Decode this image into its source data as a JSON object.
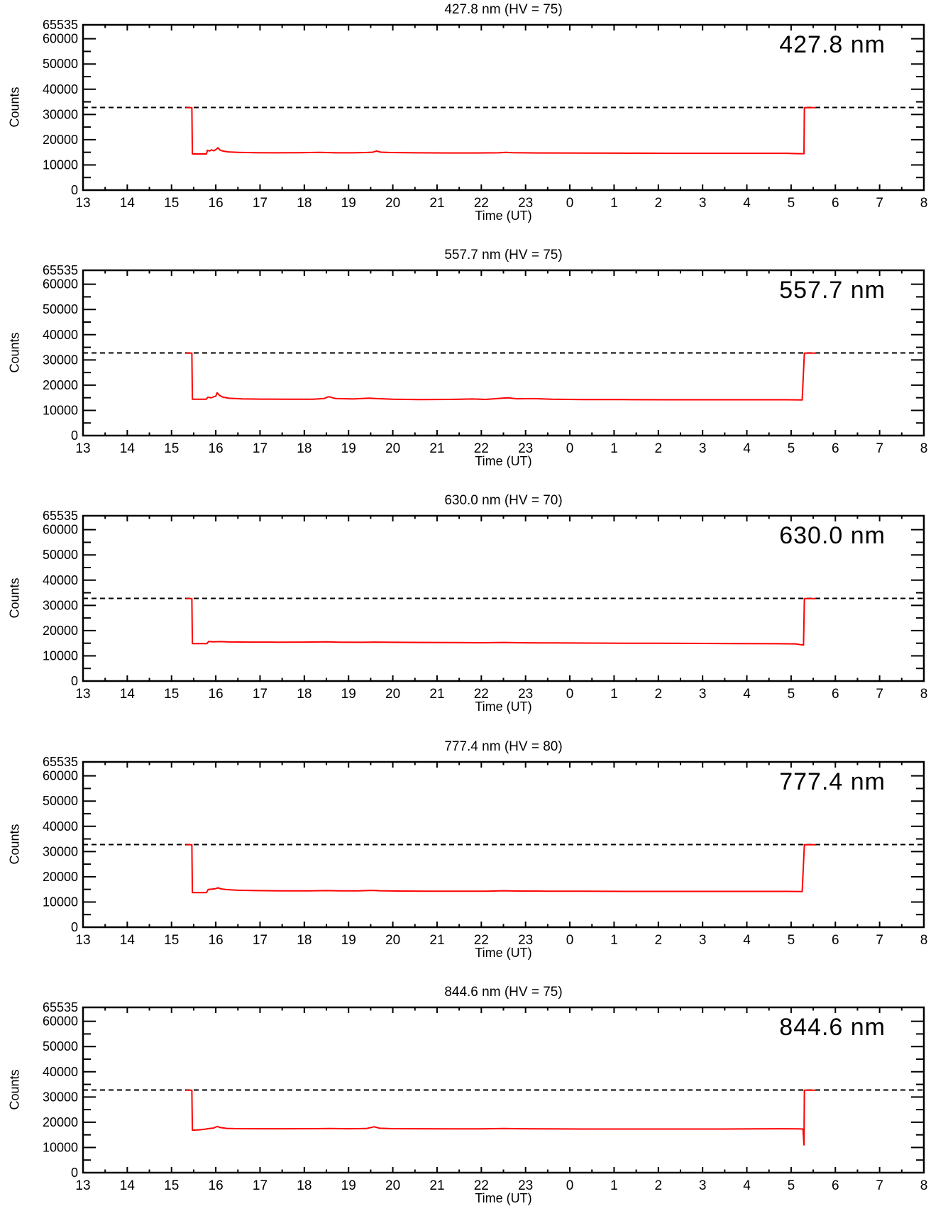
{
  "page": {
    "background": "#ffffff"
  },
  "axes": {
    "xlabel": "Time (UT)",
    "ylabel": "Counts",
    "xlim": [
      13,
      32
    ],
    "ylim": [
      0,
      65535
    ],
    "x_ticks": [
      {
        "value": 13,
        "label": "13"
      },
      {
        "value": 14,
        "label": "14"
      },
      {
        "value": 15,
        "label": "15"
      },
      {
        "value": 16,
        "label": "16"
      },
      {
        "value": 17,
        "label": "17"
      },
      {
        "value": 18,
        "label": "18"
      },
      {
        "value": 19,
        "label": "19"
      },
      {
        "value": 20,
        "label": "20"
      },
      {
        "value": 21,
        "label": "21"
      },
      {
        "value": 22,
        "label": "22"
      },
      {
        "value": 23,
        "label": "23"
      },
      {
        "value": 24,
        "label": "0"
      },
      {
        "value": 25,
        "label": "1"
      },
      {
        "value": 26,
        "label": "2"
      },
      {
        "value": 27,
        "label": "3"
      },
      {
        "value": 28,
        "label": "4"
      },
      {
        "value": 29,
        "label": "5"
      },
      {
        "value": 30,
        "label": "6"
      },
      {
        "value": 31,
        "label": "7"
      },
      {
        "value": 32,
        "label": "8"
      }
    ],
    "x_minor_step": 0.5,
    "y_ticks": [
      {
        "value": 0,
        "label": "0"
      },
      {
        "value": 10000,
        "label": "10000"
      },
      {
        "value": 20000,
        "label": "20000"
      },
      {
        "value": 30000,
        "label": "30000"
      },
      {
        "value": 40000,
        "label": "40000"
      },
      {
        "value": 50000,
        "label": "50000"
      },
      {
        "value": 60000,
        "label": "60000"
      },
      {
        "value": 65535,
        "label": "65535"
      }
    ],
    "y_minor_ticks": [
      5000,
      15000,
      25000,
      35000,
      45000,
      55000
    ],
    "threshold": 32768,
    "threshold_style": "dashed",
    "line_color": "#ff0000",
    "axis_color": "#000000"
  },
  "chart_data": {
    "note": "see panels[]; type line, one red series per panel, dashed threshold at 32768"
  },
  "panels": [
    {
      "title": "427.8 nm (HV = 75)",
      "corner_label": "427.8 nm",
      "type": "line",
      "points": [
        [
          15.33,
          32700
        ],
        [
          15.46,
          32700
        ],
        [
          15.47,
          14350
        ],
        [
          15.79,
          14350
        ],
        [
          15.81,
          15800
        ],
        [
          15.86,
          15500
        ],
        [
          15.9,
          15950
        ],
        [
          15.96,
          15600
        ],
        [
          16.0,
          16050
        ],
        [
          16.05,
          16800
        ],
        [
          16.09,
          15950
        ],
        [
          16.16,
          15500
        ],
        [
          16.28,
          15150
        ],
        [
          16.5,
          15000
        ],
        [
          16.9,
          14850
        ],
        [
          17.4,
          14800
        ],
        [
          17.9,
          14850
        ],
        [
          18.35,
          14950
        ],
        [
          18.7,
          14800
        ],
        [
          19.1,
          14800
        ],
        [
          19.4,
          14900
        ],
        [
          19.55,
          15050
        ],
        [
          19.63,
          15500
        ],
        [
          19.73,
          15050
        ],
        [
          19.95,
          14900
        ],
        [
          20.5,
          14800
        ],
        [
          21.2,
          14750
        ],
        [
          21.9,
          14750
        ],
        [
          22.4,
          14800
        ],
        [
          22.55,
          15000
        ],
        [
          22.7,
          14850
        ],
        [
          23.3,
          14750
        ],
        [
          24.2,
          14700
        ],
        [
          25.2,
          14650
        ],
        [
          26.2,
          14600
        ],
        [
          27.2,
          14600
        ],
        [
          28.2,
          14600
        ],
        [
          28.9,
          14600
        ],
        [
          29.15,
          14450
        ],
        [
          29.29,
          14450
        ],
        [
          29.3,
          32700
        ],
        [
          29.56,
          32700
        ]
      ]
    },
    {
      "title": "557.7 nm (HV = 75)",
      "corner_label": "557.7 nm",
      "type": "line",
      "points": [
        [
          15.33,
          32700
        ],
        [
          15.46,
          32700
        ],
        [
          15.47,
          14400
        ],
        [
          15.78,
          14400
        ],
        [
          15.82,
          15200
        ],
        [
          15.9,
          15000
        ],
        [
          15.96,
          15400
        ],
        [
          16.0,
          15600
        ],
        [
          16.03,
          17000
        ],
        [
          16.08,
          16000
        ],
        [
          16.15,
          15300
        ],
        [
          16.3,
          14800
        ],
        [
          16.6,
          14550
        ],
        [
          17.0,
          14450
        ],
        [
          17.6,
          14400
        ],
        [
          18.2,
          14400
        ],
        [
          18.45,
          14700
        ],
        [
          18.55,
          15400
        ],
        [
          18.7,
          14700
        ],
        [
          19.1,
          14500
        ],
        [
          19.45,
          14850
        ],
        [
          19.6,
          14700
        ],
        [
          20.0,
          14400
        ],
        [
          20.6,
          14300
        ],
        [
          21.3,
          14350
        ],
        [
          21.8,
          14500
        ],
        [
          22.1,
          14350
        ],
        [
          22.45,
          14800
        ],
        [
          22.6,
          14950
        ],
        [
          22.8,
          14600
        ],
        [
          23.2,
          14650
        ],
        [
          23.6,
          14400
        ],
        [
          24.3,
          14300
        ],
        [
          25.2,
          14250
        ],
        [
          26.2,
          14200
        ],
        [
          27.2,
          14200
        ],
        [
          28.2,
          14200
        ],
        [
          28.9,
          14200
        ],
        [
          29.25,
          14150
        ],
        [
          29.3,
          32700
        ],
        [
          29.56,
          32700
        ]
      ]
    },
    {
      "title": "630.0 nm (HV = 70)",
      "corner_label": "630.0 nm",
      "type": "line",
      "points": [
        [
          15.33,
          32700
        ],
        [
          15.46,
          32700
        ],
        [
          15.47,
          14850
        ],
        [
          15.8,
          14850
        ],
        [
          15.84,
          15700
        ],
        [
          15.95,
          15550
        ],
        [
          16.1,
          15650
        ],
        [
          16.3,
          15500
        ],
        [
          16.8,
          15450
        ],
        [
          17.4,
          15400
        ],
        [
          18.0,
          15450
        ],
        [
          18.5,
          15550
        ],
        [
          18.8,
          15400
        ],
        [
          19.3,
          15350
        ],
        [
          19.6,
          15450
        ],
        [
          20.0,
          15350
        ],
        [
          20.7,
          15300
        ],
        [
          21.4,
          15250
        ],
        [
          22.0,
          15200
        ],
        [
          22.5,
          15300
        ],
        [
          23.0,
          15150
        ],
        [
          23.7,
          15100
        ],
        [
          24.5,
          15050
        ],
        [
          25.3,
          15000
        ],
        [
          26.1,
          14950
        ],
        [
          27.0,
          14900
        ],
        [
          27.8,
          14850
        ],
        [
          28.6,
          14800
        ],
        [
          29.1,
          14750
        ],
        [
          29.22,
          14400
        ],
        [
          29.28,
          14300
        ],
        [
          29.3,
          32700
        ],
        [
          29.56,
          32700
        ]
      ]
    },
    {
      "title": "777.4 nm (HV = 80)",
      "corner_label": "777.4 nm",
      "type": "line",
      "points": [
        [
          15.33,
          32700
        ],
        [
          15.46,
          32700
        ],
        [
          15.47,
          13700
        ],
        [
          15.79,
          13700
        ],
        [
          15.83,
          15000
        ],
        [
          15.92,
          15100
        ],
        [
          16.0,
          15300
        ],
        [
          16.05,
          15600
        ],
        [
          16.12,
          15200
        ],
        [
          16.25,
          14900
        ],
        [
          16.5,
          14650
        ],
        [
          16.9,
          14500
        ],
        [
          17.5,
          14400
        ],
        [
          18.1,
          14400
        ],
        [
          18.5,
          14500
        ],
        [
          18.8,
          14400
        ],
        [
          19.2,
          14400
        ],
        [
          19.55,
          14600
        ],
        [
          19.7,
          14450
        ],
        [
          20.1,
          14350
        ],
        [
          20.8,
          14300
        ],
        [
          21.5,
          14300
        ],
        [
          22.1,
          14300
        ],
        [
          22.5,
          14450
        ],
        [
          22.8,
          14350
        ],
        [
          23.5,
          14300
        ],
        [
          24.3,
          14250
        ],
        [
          25.2,
          14200
        ],
        [
          26.2,
          14200
        ],
        [
          27.2,
          14200
        ],
        [
          28.2,
          14200
        ],
        [
          28.9,
          14200
        ],
        [
          29.25,
          14150
        ],
        [
          29.3,
          32700
        ],
        [
          29.56,
          32700
        ]
      ]
    },
    {
      "title": "844.6 nm (HV = 75)",
      "corner_label": "844.6 nm",
      "type": "line",
      "points": [
        [
          15.33,
          32700
        ],
        [
          15.46,
          32700
        ],
        [
          15.47,
          16850
        ],
        [
          15.6,
          16950
        ],
        [
          15.75,
          17200
        ],
        [
          15.85,
          17500
        ],
        [
          15.95,
          17700
        ],
        [
          16.03,
          18350
        ],
        [
          16.1,
          17900
        ],
        [
          16.25,
          17550
        ],
        [
          16.5,
          17450
        ],
        [
          17.0,
          17400
        ],
        [
          17.6,
          17400
        ],
        [
          18.2,
          17450
        ],
        [
          18.6,
          17500
        ],
        [
          19.0,
          17400
        ],
        [
          19.4,
          17500
        ],
        [
          19.58,
          18200
        ],
        [
          19.7,
          17600
        ],
        [
          20.0,
          17450
        ],
        [
          20.6,
          17400
        ],
        [
          21.3,
          17350
        ],
        [
          22.0,
          17350
        ],
        [
          22.5,
          17500
        ],
        [
          22.9,
          17400
        ],
        [
          23.5,
          17350
        ],
        [
          24.3,
          17300
        ],
        [
          25.2,
          17300
        ],
        [
          26.2,
          17300
        ],
        [
          27.2,
          17300
        ],
        [
          28.2,
          17350
        ],
        [
          28.8,
          17400
        ],
        [
          29.15,
          17350
        ],
        [
          29.27,
          17300
        ],
        [
          29.29,
          11000
        ],
        [
          29.3,
          32700
        ],
        [
          29.56,
          32700
        ]
      ]
    }
  ]
}
